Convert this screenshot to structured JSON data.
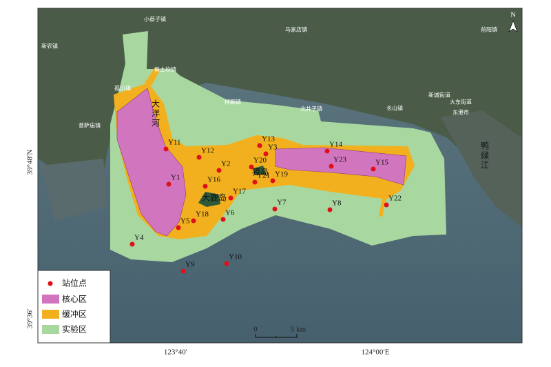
{
  "map": {
    "place_names": [
      "小蔡子镇",
      "马家店镇",
      "前阳镇",
      "新农镇",
      "黄土坎镇",
      "孤山镇",
      "椅圈镇",
      "北井子镇",
      "长山镇",
      "新城街道",
      "大东街道",
      "东港市",
      "菩萨庙镇"
    ],
    "rivers": [
      "大洋河",
      "鸭绿江"
    ],
    "islands": [
      "獐岛",
      "大鹿岛"
    ],
    "stations": [
      "Y11",
      "Y12",
      "Y13",
      "Y3",
      "Y14",
      "Y2",
      "Y20",
      "Y23",
      "Y15",
      "Y1",
      "Y16",
      "Y21",
      "Y19",
      "Y17",
      "Y22",
      "Y7",
      "Y8",
      "Y18",
      "Y6",
      "Y5",
      "Y4",
      "Y10",
      "Y9"
    ],
    "legend": [
      "站位点",
      "核心区",
      "缓冲区",
      "实验区"
    ],
    "scale": {
      "start": "0",
      "end": "5 km"
    },
    "north": "N",
    "lat_labels": [
      "39°48′N",
      "39°36′"
    ],
    "lon_labels": [
      "123°40′",
      "124°00′E"
    ]
  }
}
